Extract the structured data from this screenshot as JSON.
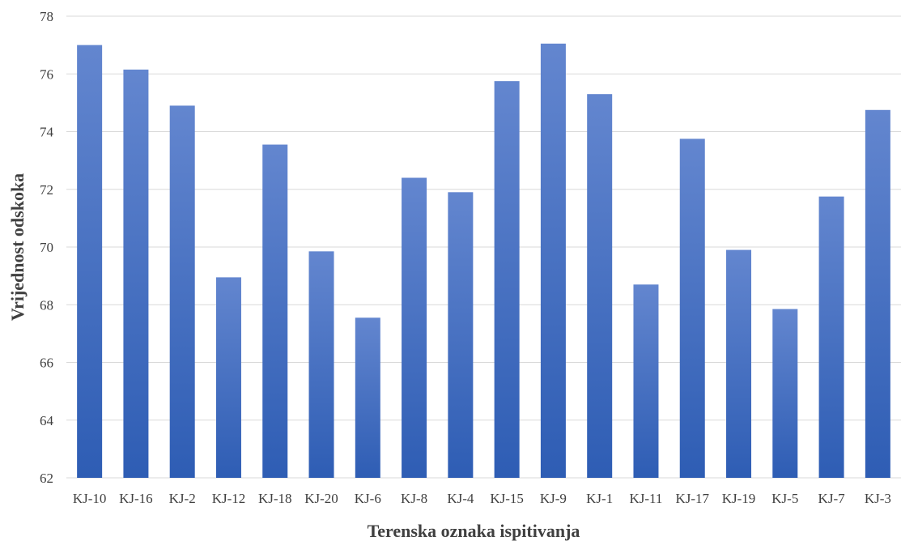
{
  "chart_data": {
    "type": "bar",
    "title": "",
    "xlabel": "Terenska oznaka ispitivanja",
    "ylabel": "Vrijednost odskoka",
    "ylim": [
      62,
      78
    ],
    "yticks": [
      62,
      64,
      66,
      68,
      70,
      72,
      74,
      76,
      78
    ],
    "grid": true,
    "categories": [
      "KJ-10",
      "KJ-16",
      "KJ-2",
      "KJ-12",
      "KJ-18",
      "KJ-20",
      "KJ-6",
      "KJ-8",
      "KJ-4",
      "KJ-15",
      "KJ-9",
      "KJ-1",
      "KJ-11",
      "KJ-17",
      "KJ-19",
      "KJ-5",
      "KJ-7",
      "KJ-3"
    ],
    "values": [
      77.0,
      76.15,
      74.9,
      68.95,
      73.55,
      69.85,
      67.55,
      72.4,
      71.9,
      75.75,
      77.05,
      75.3,
      68.7,
      73.75,
      69.9,
      67.85,
      71.75,
      74.75
    ],
    "colors": {
      "bar_top": "#6386cf",
      "bar_bottom": "#2e5db4",
      "grid": "#d9d9d9",
      "text": "#404040"
    }
  }
}
